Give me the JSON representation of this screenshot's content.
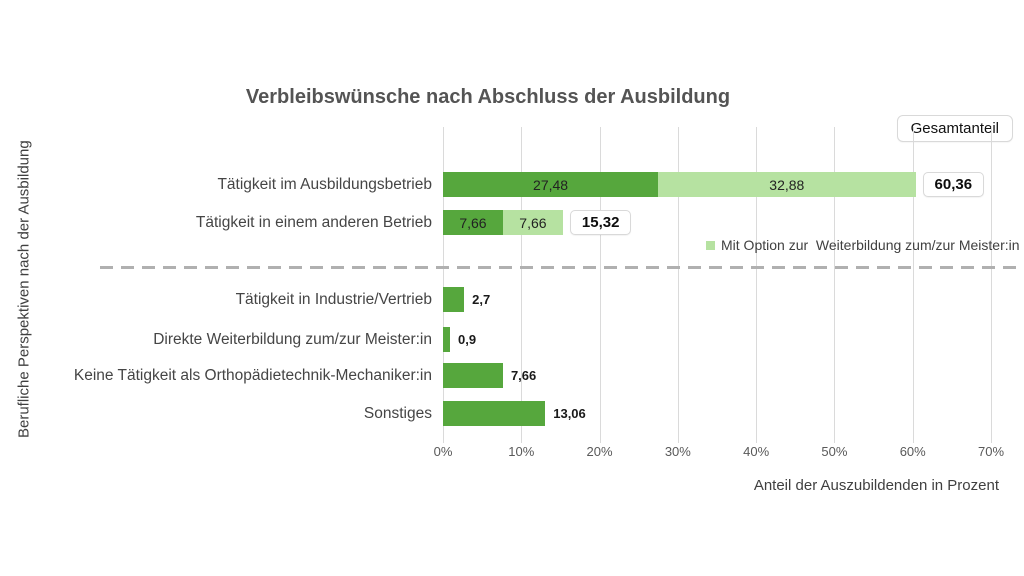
{
  "title": "Verbleibswünsche nach Abschluss der Ausbildung",
  "header": {
    "gesamtanteil_label": "Gesamtanteil"
  },
  "colors": {
    "green": "#56A73D",
    "light_green": "#B6E2A1",
    "gridline": "#DADADA",
    "dash": "#B0B0B0"
  },
  "legend": {
    "label": "Mit Option zur  Weiterbildung zum/zur Meister:in",
    "swatch_color": "#B6E2A1"
  },
  "chart_data": {
    "type": "bar",
    "orientation": "horizontal",
    "title": "Verbleibswünsche nach Abschluss der Ausbildung",
    "xlabel": "Anteil der Auszubildenden in Prozent",
    "ylabel": "Berufliche Perspektiven nach der Ausbildung",
    "xlim": [
      0,
      70
    ],
    "x_ticks": [
      {
        "value": 0,
        "label": "0%"
      },
      {
        "value": 10,
        "label": "10%"
      },
      {
        "value": 20,
        "label": "20%"
      },
      {
        "value": 30,
        "label": "30%"
      },
      {
        "value": 40,
        "label": "40%"
      },
      {
        "value": 50,
        "label": "50%"
      },
      {
        "value": 60,
        "label": "60%"
      },
      {
        "value": 70,
        "label": "70%"
      }
    ],
    "grid": true,
    "legend_position": "inside-right",
    "stacked_rows": [
      {
        "label": "Tätigkeit im Ausbildungsbetrieb",
        "segments": [
          {
            "series": "Basis",
            "value": 27.48,
            "value_label": "27,48",
            "color_key": "green"
          },
          {
            "series": "Mit Option zur Weiterbildung zum/zur Meister:in",
            "value": 32.88,
            "value_label": "32,88",
            "color_key": "light_green"
          }
        ],
        "total": 60.36,
        "total_label": "60,36"
      },
      {
        "label": "Tätigkeit in einem anderen Betrieb",
        "segments": [
          {
            "series": "Basis",
            "value": 7.66,
            "value_label": "7,66",
            "color_key": "green"
          },
          {
            "series": "Mit Option zur Weiterbildung zum/zur Meister:in",
            "value": 7.66,
            "value_label": "7,66",
            "color_key": "light_green"
          }
        ],
        "total": 15.32,
        "total_label": "15,32"
      }
    ],
    "single_rows": [
      {
        "label": "Tätigkeit in Industrie/Vertrieb",
        "value": 2.7,
        "value_label": "2,7",
        "color_key": "green"
      },
      {
        "label": "Direkte Weiterbildung zum/zur Meister:in",
        "value": 0.9,
        "value_label": "0,9",
        "color_key": "green"
      },
      {
        "label": "Keine Tätigkeit als Orthopädietechnik-Mechaniker:in",
        "value": 7.66,
        "value_label": "7,66",
        "color_key": "green"
      },
      {
        "label": "Sonstiges",
        "value": 13.06,
        "value_label": "13,06",
        "color_key": "green"
      }
    ]
  }
}
